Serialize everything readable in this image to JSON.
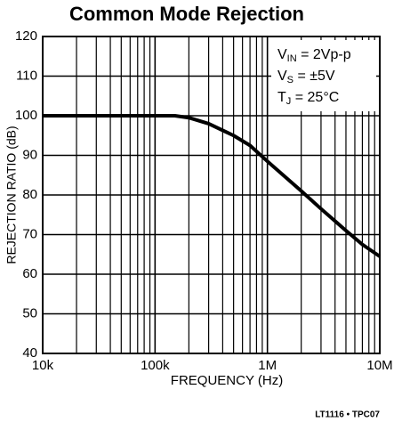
{
  "chart_data": {
    "type": "line",
    "title": "Common Mode Rejection",
    "xlabel": "FREQUENCY (Hz)",
    "ylabel": "REJECTION RATIO (dB)",
    "note": "LT1116 • TPC07",
    "xscale": "log",
    "xlim": [
      10000,
      10000000
    ],
    "ylim": [
      40,
      120
    ],
    "xticks": [
      {
        "value": 10000,
        "label": "10k"
      },
      {
        "value": 100000,
        "label": "100k"
      },
      {
        "value": 1000000,
        "label": "1M"
      },
      {
        "value": 10000000,
        "label": "10M"
      }
    ],
    "xminor": [
      20000,
      30000,
      40000,
      50000,
      60000,
      70000,
      80000,
      90000,
      200000,
      300000,
      400000,
      500000,
      600000,
      700000,
      800000,
      900000,
      2000000,
      3000000,
      4000000,
      5000000,
      6000000,
      7000000,
      8000000,
      9000000
    ],
    "yticks": [
      40,
      50,
      60,
      70,
      80,
      90,
      100,
      110,
      120
    ],
    "grid": true,
    "annotations": [
      {
        "base": "V",
        "sub": "IN",
        "rest": " = 2Vp-p"
      },
      {
        "base": "V",
        "sub": "S",
        "rest": " = ±5V"
      },
      {
        "base": "T",
        "sub": "J",
        "rest": " = 25°C"
      }
    ],
    "series": [
      {
        "color": "#000000",
        "x": [
          10000,
          100000,
          150000,
          200000,
          300000,
          500000,
          700000,
          1000000,
          2000000,
          3000000,
          5000000,
          7000000,
          10000000
        ],
        "values": [
          100,
          100,
          100,
          99.5,
          98,
          95,
          92.5,
          88.5,
          81,
          76.5,
          71,
          67.5,
          64.5
        ]
      }
    ]
  }
}
